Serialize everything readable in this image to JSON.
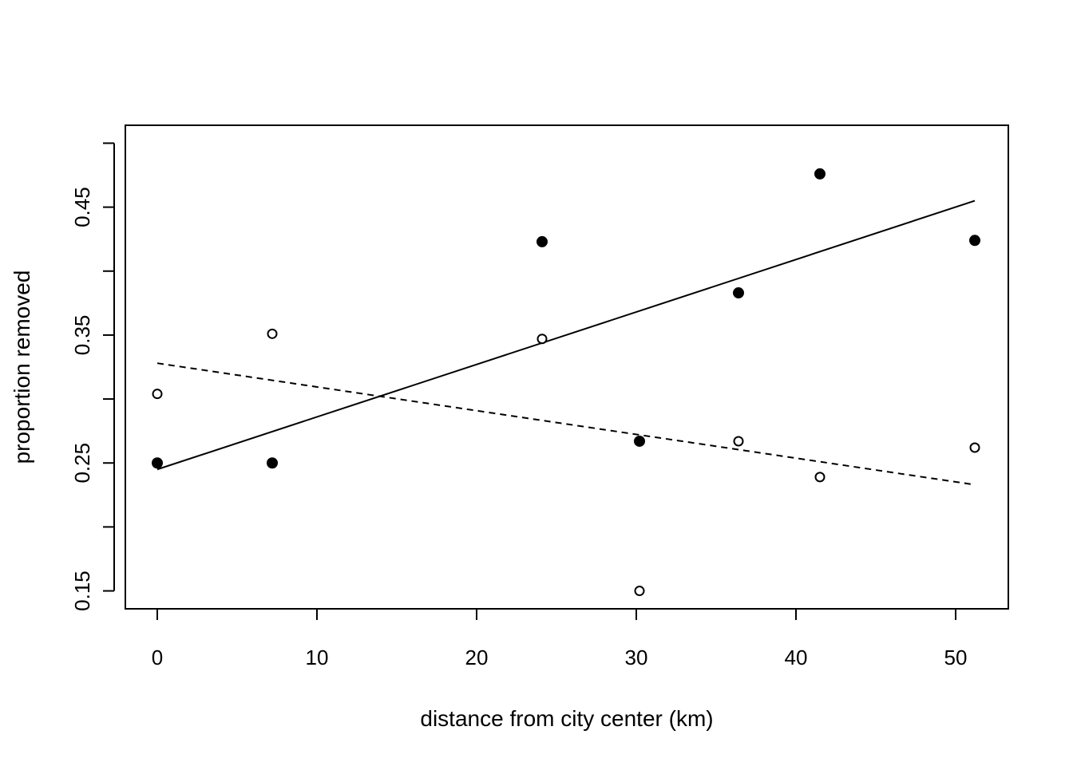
{
  "chart_data": {
    "type": "scatter",
    "title": "",
    "xlabel": "distance from city center (km)",
    "ylabel": "proportion removed",
    "xlim": [
      -2,
      53.3
    ],
    "ylim": [
      0.136,
      0.514
    ],
    "x_ticks": [
      0,
      10,
      20,
      30,
      40,
      50
    ],
    "y_ticks": [
      0.15,
      0.2,
      0.25,
      0.3,
      0.35,
      0.4,
      0.45,
      0.5
    ],
    "y_tick_labels": [
      {
        "value": 0.15,
        "label": "0.15"
      },
      {
        "value": 0.25,
        "label": "0.25"
      },
      {
        "value": 0.35,
        "label": "0.35"
      },
      {
        "value": 0.45,
        "label": "0.45"
      }
    ],
    "grid": false,
    "series": [
      {
        "marker": "filled-circle",
        "color": "#000000",
        "points": [
          {
            "x": 0,
            "y": 0.25
          },
          {
            "x": 7.2,
            "y": 0.25
          },
          {
            "x": 24.1,
            "y": 0.423
          },
          {
            "x": 30.2,
            "y": 0.267
          },
          {
            "x": 36.4,
            "y": 0.383
          },
          {
            "x": 41.5,
            "y": 0.476
          },
          {
            "x": 51.2,
            "y": 0.424
          }
        ],
        "fit": {
          "type": "solid",
          "x": [
            0,
            51.2
          ],
          "y": [
            0.245,
            0.455
          ]
        }
      },
      {
        "marker": "open-circle",
        "color": "#000000",
        "points": [
          {
            "x": 0,
            "y": 0.304
          },
          {
            "x": 7.2,
            "y": 0.351
          },
          {
            "x": 24.1,
            "y": 0.347
          },
          {
            "x": 30.2,
            "y": 0.15
          },
          {
            "x": 36.4,
            "y": 0.267
          },
          {
            "x": 41.5,
            "y": 0.239
          },
          {
            "x": 51.2,
            "y": 0.262
          }
        ],
        "fit": {
          "type": "dashed",
          "x": [
            0,
            51.2
          ],
          "y": [
            0.328,
            0.233
          ]
        }
      }
    ]
  }
}
